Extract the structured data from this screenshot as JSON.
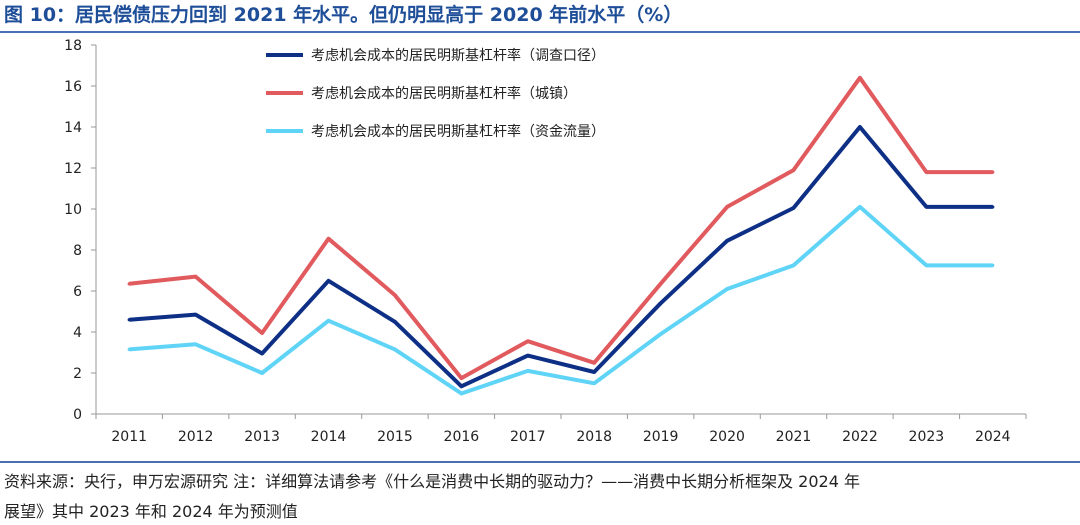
{
  "title": "图 10：居民偿债压力回到 2021 年水平。但仍明显高于 2020 年前水平（%）",
  "source_line1": "资料来源：央行，申万宏源研究  注：详细算法请参考《什么是消费中长期的驱动力？——消费中长期分析框架及 2024 年",
  "source_line2": "展望》其中 2023 年和 2024 年为预测值",
  "chart_data": {
    "type": "line",
    "categories": [
      "2011",
      "2012",
      "2013",
      "2014",
      "2015",
      "2016",
      "2017",
      "2018",
      "2019",
      "2020",
      "2021",
      "2022",
      "2023",
      "2024"
    ],
    "ylim": [
      0,
      18
    ],
    "yticks": [
      0,
      2,
      4,
      6,
      8,
      10,
      12,
      14,
      16,
      18
    ],
    "grid": false,
    "legend_position": "top-center",
    "series": [
      {
        "name": "考虑机会成本的居民明斯基杠杆率（调查口径）",
        "color": "#0d2f85",
        "values": [
          4.6,
          4.85,
          2.95,
          6.5,
          4.5,
          1.35,
          2.85,
          2.05,
          5.4,
          8.45,
          10.05,
          14.0,
          10.1,
          10.1
        ]
      },
      {
        "name": "考虑机会成本的居民明斯基杠杆率（城镇）",
        "color": "#e05a5e",
        "values": [
          6.35,
          6.7,
          3.95,
          8.55,
          5.8,
          1.75,
          3.55,
          2.5,
          6.35,
          10.1,
          11.9,
          16.4,
          11.8,
          11.8
        ]
      },
      {
        "name": "考虑机会成本的居民明斯基杠杆率（资金流量）",
        "color": "#5fd4f7",
        "values": [
          3.15,
          3.4,
          2.0,
          4.55,
          3.15,
          1.0,
          2.1,
          1.5,
          3.9,
          6.1,
          7.25,
          10.1,
          7.25,
          7.25
        ]
      }
    ]
  }
}
